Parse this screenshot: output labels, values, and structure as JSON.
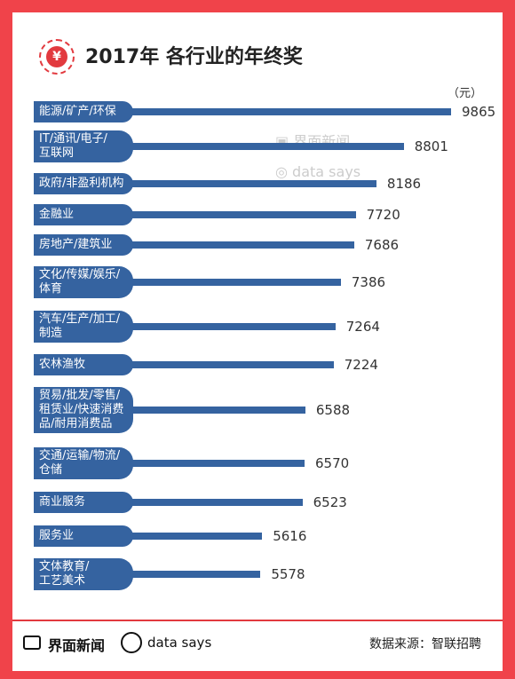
{
  "header": {
    "title": "2017年 各行业的年终奖",
    "badge_glyph": "¥",
    "unit": "（元）"
  },
  "watermarks": {
    "brand": "界面新闻",
    "datasays": "data says"
  },
  "footer": {
    "brand": "界面新闻",
    "datasays": "data says",
    "source": "数据来源：智联招聘"
  },
  "colors": {
    "bar": "#3563a0",
    "frame": "#f0434a"
  },
  "chart_data": {
    "type": "bar",
    "orientation": "horizontal",
    "title": "2017年 各行业的年终奖",
    "unit": "（元）",
    "xlim": [
      0,
      10000
    ],
    "categories": [
      "能源/矿产/环保",
      "IT/通讯/电子/\n互联网",
      "政府/非盈利机构",
      "金融业",
      "房地产/建筑业",
      "文化/传媒/娱乐/\n体育",
      "汽车/生产/加工/\n制造",
      "农林渔牧",
      "贸易/批发/零售/\n租赁业/快速消费\n品/耐用消费品",
      "交通/运输/物流/\n仓储",
      "商业服务",
      "服务业",
      "文体教育/\n工艺美术"
    ],
    "values": [
      9865,
      8801,
      8186,
      7720,
      7686,
      7386,
      7264,
      7224,
      6588,
      6570,
      6523,
      5616,
      5578
    ]
  }
}
